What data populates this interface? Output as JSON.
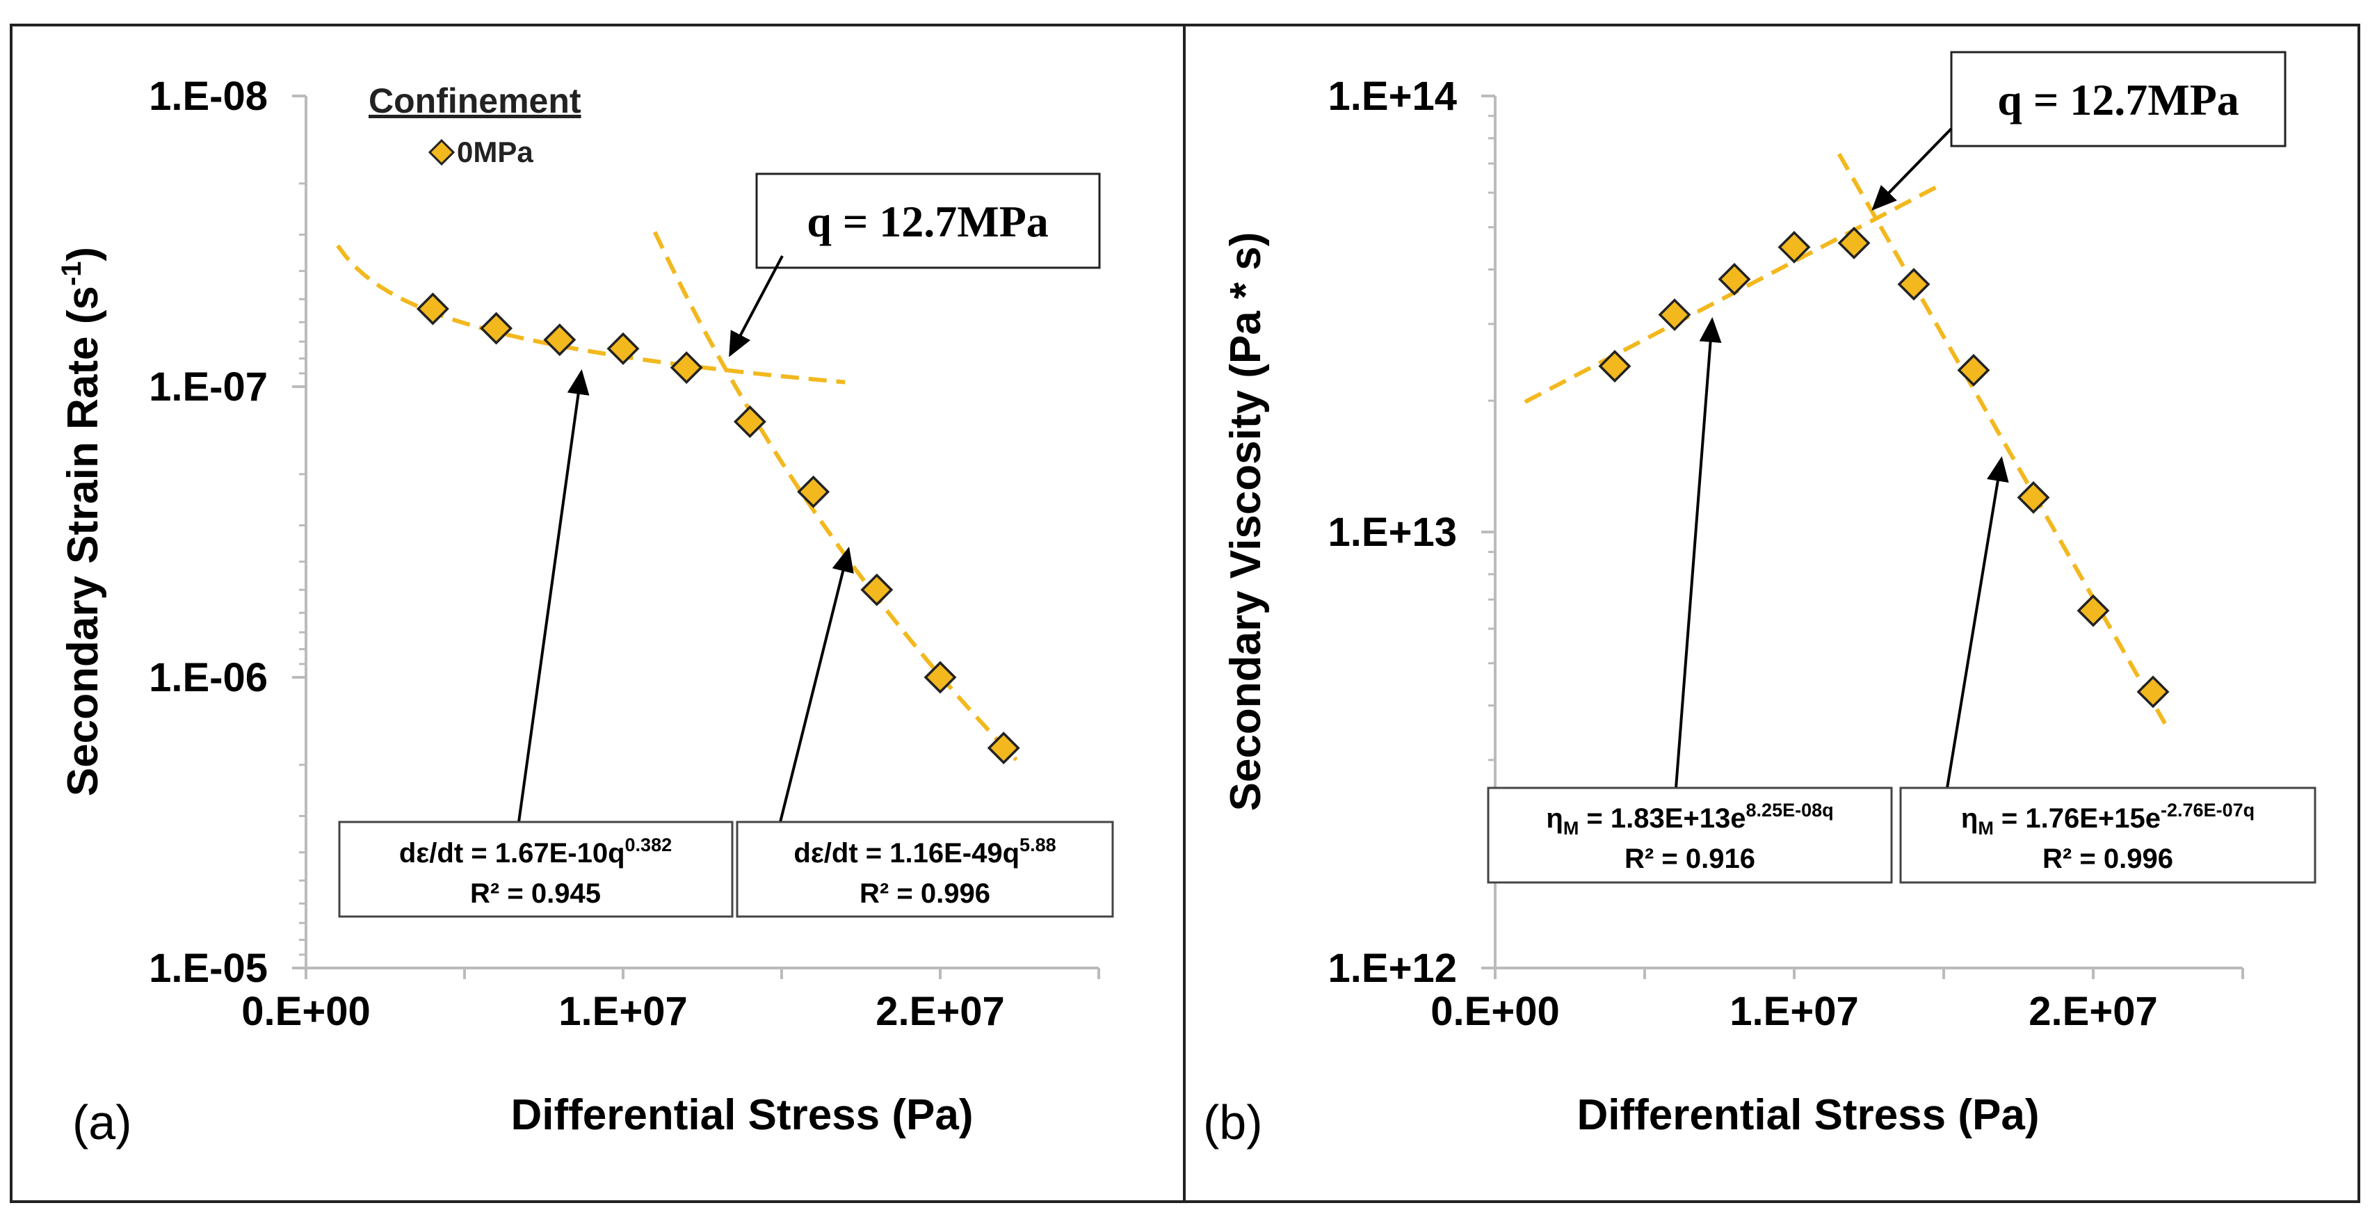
{
  "panels": [
    {
      "panel_label": "(a)",
      "legend": {
        "title": "Confinement",
        "entries": [
          {
            "label": "0MPa",
            "color": "#F2B81E"
          }
        ]
      },
      "callout": "q = 12.7MPa",
      "fits": [
        {
          "lhs": "dε/dt = 1.67E-10q",
          "sup": "0.382",
          "r2": "R² = 0.945"
        },
        {
          "lhs": "dε/dt = 1.16E-49q",
          "sup": "5.88",
          "r2": "R² = 0.996"
        }
      ]
    },
    {
      "panel_label": "(b)",
      "callout": "q = 12.7MPa",
      "fits": [
        {
          "pre": "η",
          "sub": "M",
          "lhs": " = 1.83E+13e",
          "sup": "8.25E-08q",
          "r2": "R² = 0.916"
        },
        {
          "pre": "η",
          "sub": "M",
          "lhs": " = 1.76E+15e",
          "sup": "-2.76E-07q",
          "r2": "R² = 0.996"
        }
      ]
    }
  ],
  "chart_data": [
    {
      "type": "scatter",
      "title": "",
      "xlabel": "Differential Stress (Pa)",
      "ylabel": "Secondary Strain Rate (s⁻¹)",
      "x_scale": "linear",
      "y_scale": "log",
      "y_reversed": true,
      "xlim": [
        0,
        25000000
      ],
      "ylim": [
        1e-08,
        1e-05
      ],
      "x_ticks": [
        0,
        10000000,
        20000000
      ],
      "x_tick_labels": [
        "0.E+00",
        "1.E+07",
        "2.E+07"
      ],
      "y_ticks": [
        1e-08,
        1e-07,
        1e-06,
        1e-05
      ],
      "y_tick_labels": [
        "1.E-08",
        "1.E-07",
        "1.E-06",
        "1.E-05"
      ],
      "grid": false,
      "series": [
        {
          "name": "0MPa",
          "marker": "diamond",
          "color": "#F2B81E",
          "x": [
            4000000,
            6000000,
            8000000,
            10000000,
            12000000,
            14000000,
            16000000,
            18000000,
            20000000,
            22000000
          ],
          "y": [
            5.4e-08,
            6.3e-08,
            6.9e-08,
            7.4e-08,
            8.6e-08,
            1.32e-07,
            2.3e-07,
            5e-07,
            1e-06,
            1.75e-06
          ]
        }
      ],
      "trendlines": [
        {
          "type": "power",
          "coef": 1.67e-10,
          "exp": 0.382,
          "x_range": [
            1000000,
            17000000
          ],
          "color": "#F2B81E",
          "r2": 0.945
        },
        {
          "type": "power",
          "coef": 1.16e-49,
          "exp": 5.88,
          "x_range": [
            11000000,
            22400000
          ],
          "color": "#F2B81E",
          "r2": 0.996
        }
      ],
      "intersection": {
        "x": 12700000,
        "label": "q = 12.7MPa"
      }
    },
    {
      "type": "scatter",
      "title": "",
      "xlabel": "Differential Stress (Pa)",
      "ylabel": "Secondary Viscosity (Pa * s)",
      "x_scale": "linear",
      "y_scale": "log",
      "y_reversed": false,
      "xlim": [
        0,
        25000000
      ],
      "ylim": [
        1000000000000.0,
        100000000000000.0
      ],
      "x_ticks": [
        0,
        10000000,
        20000000
      ],
      "x_tick_labels": [
        "0.E+00",
        "1.E+07",
        "2.E+07"
      ],
      "y_ticks": [
        1000000000000.0,
        10000000000000.0,
        100000000000000.0
      ],
      "y_tick_labels": [
        "1.E+12",
        "1.E+13",
        "1.E+14"
      ],
      "grid": false,
      "series": [
        {
          "name": "0MPa",
          "marker": "diamond",
          "color": "#F2B81E",
          "x": [
            4000000,
            6000000,
            8000000,
            10000000,
            12000000,
            14000000,
            16000000,
            18000000,
            20000000,
            22000000
          ],
          "y": [
            24000000000000.0,
            31500000000000.0,
            38000000000000.0,
            45000000000000.0,
            46000000000000.0,
            37000000000000.0,
            23500000000000.0,
            12000000000000.0,
            6600000000000.0,
            4300000000000.0
          ]
        }
      ],
      "trendlines": [
        {
          "type": "exponential",
          "coef": 18300000000000.0,
          "k": 8.25e-08,
          "x_range": [
            1000000,
            15000000
          ],
          "color": "#F2B81E",
          "r2": 0.916
        },
        {
          "type": "exponential",
          "coef": 1760000000000000.0,
          "k": -2.76e-07,
          "x_range": [
            11500000,
            22400000
          ],
          "color": "#F2B81E",
          "r2": 0.996
        }
      ],
      "intersection": {
        "x": 12700000,
        "label": "q = 12.7MPa"
      }
    }
  ]
}
